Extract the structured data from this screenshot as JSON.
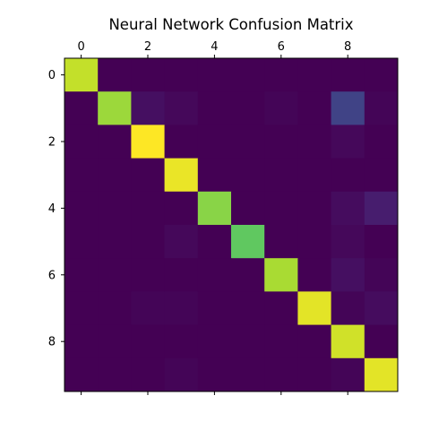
{
  "chart_data": {
    "type": "heatmap",
    "title": "Neural Network Confusion Matrix",
    "xlabel": "",
    "ylabel": "",
    "x_tick_position": "top",
    "x_ticks": [
      "0",
      "2",
      "4",
      "6",
      "8"
    ],
    "y_ticks": [
      "0",
      "2",
      "4",
      "6",
      "8"
    ],
    "colormap": "viridis",
    "rows": 10,
    "cols": 10,
    "vmin": 0,
    "vmax": 1,
    "matrix": [
      [
        0.91,
        0,
        0,
        0,
        0,
        0,
        0,
        0,
        0,
        0
      ],
      [
        0,
        0.85,
        0.04,
        0.02,
        0,
        0,
        0.01,
        0,
        0.2,
        0.01
      ],
      [
        0,
        0,
        1.0,
        0,
        0,
        0,
        0,
        0,
        0.02,
        0
      ],
      [
        0,
        0,
        0,
        0.97,
        0,
        0,
        0,
        0,
        0,
        0
      ],
      [
        0,
        0,
        0,
        0,
        0.82,
        0,
        0,
        0,
        0.03,
        0.08
      ],
      [
        0,
        0,
        0,
        0.02,
        0,
        0.75,
        0,
        0,
        0.02,
        0
      ],
      [
        0,
        0,
        0,
        0,
        0,
        0,
        0.87,
        0,
        0.04,
        0.01
      ],
      [
        0,
        0,
        0.01,
        0.01,
        0,
        0,
        0,
        0.96,
        0.01,
        0.03
      ],
      [
        0,
        0,
        0,
        0,
        0,
        0,
        0,
        0,
        0.93,
        0
      ],
      [
        0,
        0,
        0,
        0.01,
        0,
        0,
        0,
        0,
        0.01,
        0.96
      ]
    ],
    "grid": false,
    "legend": "none"
  }
}
